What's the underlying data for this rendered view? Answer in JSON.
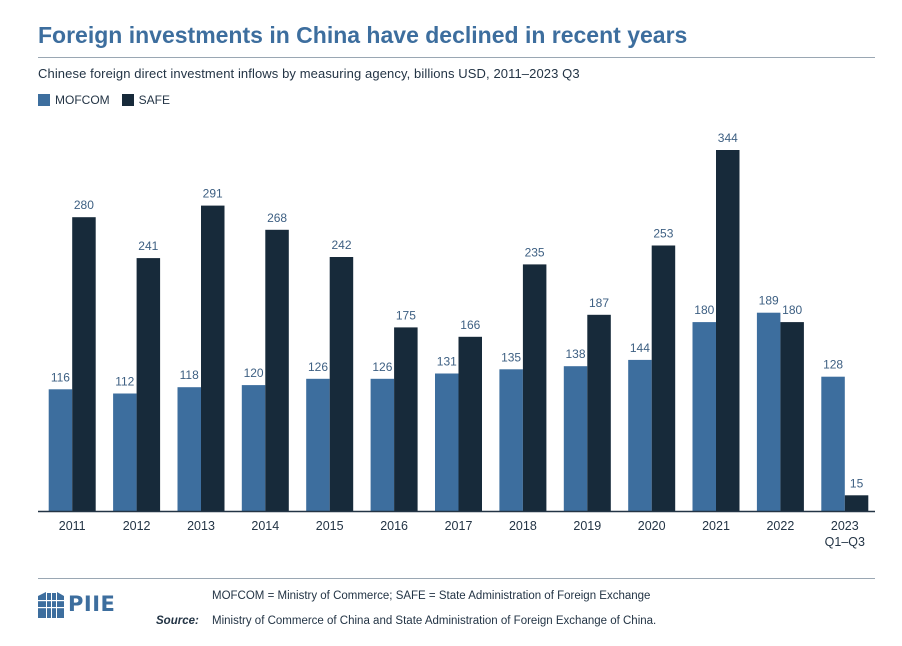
{
  "colors": {
    "mofcom": "#3d6e9e",
    "safe": "#172a3a",
    "label": "#3d5f82",
    "axis": "#233445"
  },
  "chart_data": {
    "type": "bar",
    "title": "Foreign investments in China have declined in recent years",
    "subtitle": "Chinese foreign direct investment inflows by measuring agency, billions USD, 2011–2023 Q3",
    "categories": [
      [
        "2011"
      ],
      [
        "2012"
      ],
      [
        "2013"
      ],
      [
        "2014"
      ],
      [
        "2015"
      ],
      [
        "2016"
      ],
      [
        "2017"
      ],
      [
        "2018"
      ],
      [
        "2019"
      ],
      [
        "2020"
      ],
      [
        "2021"
      ],
      [
        "2022"
      ],
      [
        "2023",
        "Q1–Q3"
      ]
    ],
    "series": [
      {
        "name": "MOFCOM",
        "values": [
          116,
          112,
          118,
          120,
          126,
          126,
          131,
          135,
          138,
          144,
          180,
          189,
          128
        ]
      },
      {
        "name": "SAFE",
        "values": [
          280,
          241,
          291,
          268,
          242,
          175,
          166,
          235,
          187,
          253,
          344,
          180,
          15
        ]
      }
    ],
    "ylim": [
      0,
      344
    ],
    "grid": false,
    "legend": "top-left"
  },
  "footer": {
    "logo": "PIIE",
    "note": "MOFCOM = Ministry of Commerce; SAFE = State Administration of Foreign Exchange",
    "source_label": "Source:",
    "source_text": "Ministry of Commerce of China and State Administration of Foreign Exchange of China."
  }
}
